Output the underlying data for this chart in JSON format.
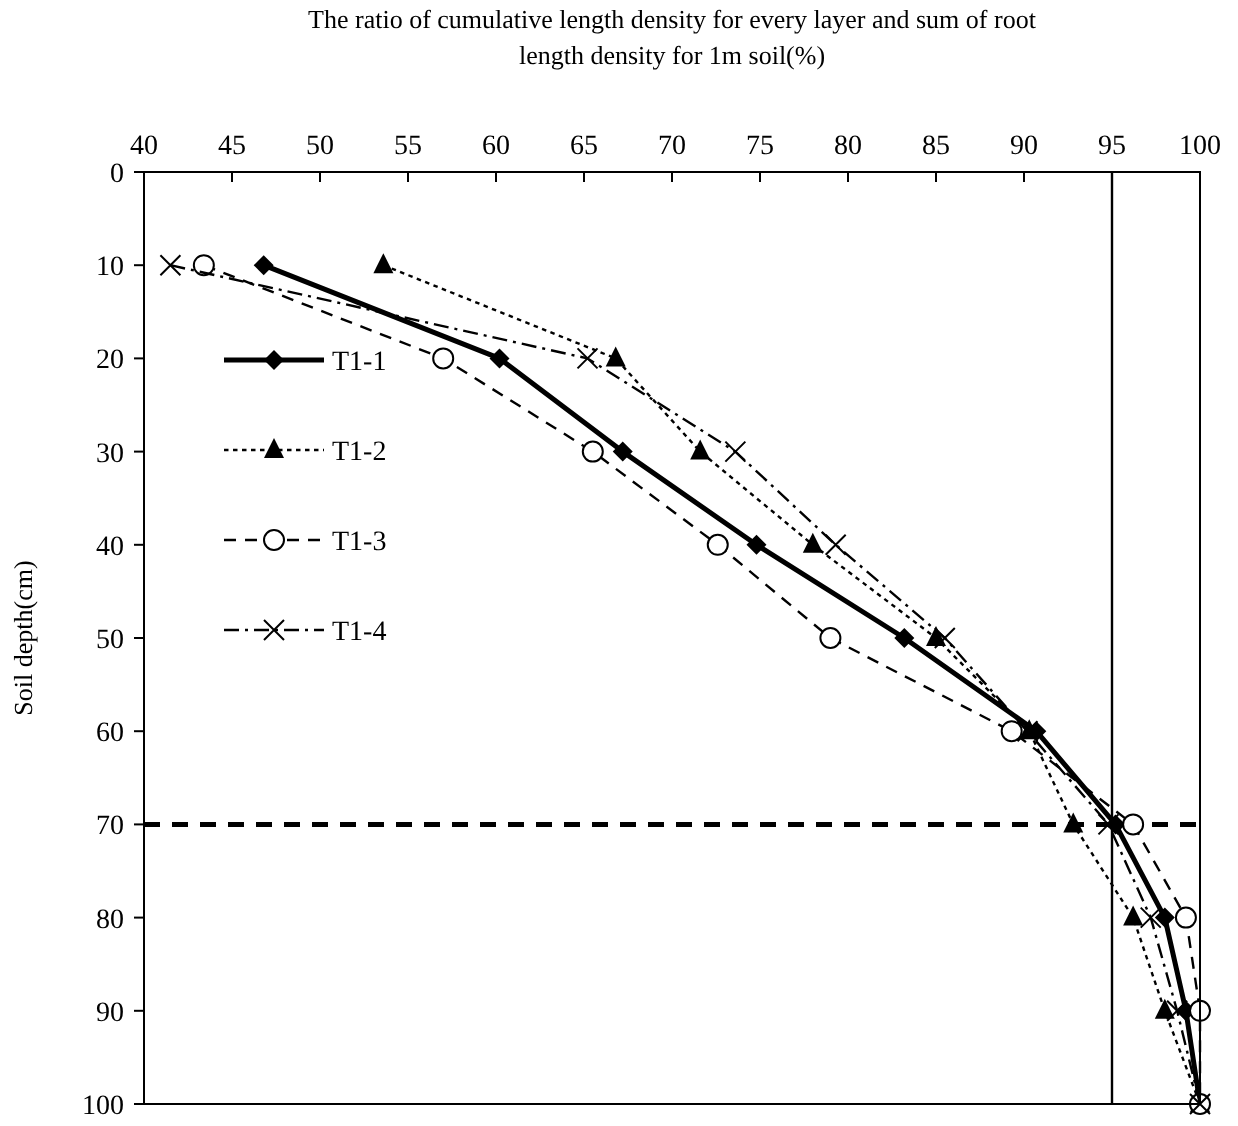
{
  "chart_data": {
    "type": "line",
    "xlabel": "The ratio of cumulative length density for every layer and sum of root length density for 1m soil(%)",
    "ylabel": "Soil depth(cm)",
    "xlim": [
      40,
      100
    ],
    "xticks": [
      40,
      45,
      50,
      55,
      60,
      65,
      70,
      75,
      80,
      85,
      90,
      95,
      100
    ],
    "ylim": [
      100,
      0
    ],
    "yticks": [
      0,
      10,
      20,
      30,
      40,
      50,
      60,
      70,
      80,
      90,
      100
    ],
    "legend": "left",
    "grid": false,
    "series": [
      {
        "name": "T1-1",
        "color": "#000000",
        "marker": "diamond",
        "line_style": "solid",
        "x": [
          46.8,
          60.2,
          67.2,
          74.8,
          83.2,
          90.7,
          95.2,
          98,
          99.2,
          100
        ],
        "values": [
          10,
          20,
          30,
          40,
          50,
          60,
          70,
          80,
          90,
          100
        ]
      },
      {
        "name": "T1-2",
        "color": "#000000",
        "marker": "triangle",
        "line_style": "dotted",
        "x": [
          53.6,
          66.8,
          71.6,
          78,
          85,
          90.3,
          92.8,
          96.2,
          98,
          100
        ],
        "values": [
          10,
          20,
          30,
          40,
          50,
          60,
          70,
          80,
          90,
          100
        ]
      },
      {
        "name": "T1-3",
        "color": "#000000",
        "marker": "circle",
        "line_style": "dashed",
        "x": [
          43.4,
          57,
          65.5,
          72.6,
          79,
          89.3,
          96.2,
          99.2,
          100,
          100
        ],
        "values": [
          10,
          20,
          30,
          40,
          50,
          60,
          70,
          80,
          90,
          100
        ]
      },
      {
        "name": "T1-4",
        "color": "#000000",
        "marker": "cross",
        "line_style": "dashdot",
        "x": [
          41.5,
          65.2,
          73.6,
          79.3,
          85.5,
          90.2,
          94.8,
          97.2,
          98.7,
          100
        ],
        "values": [
          10,
          20,
          30,
          40,
          50,
          60,
          70,
          80,
          90,
          100
        ]
      }
    ],
    "ref_lines": [
      {
        "axis": "y",
        "value": 70,
        "line_style": "dashed",
        "color": "#000000"
      },
      {
        "axis": "x",
        "value": 95,
        "line_style": "solid",
        "color": "#000000"
      }
    ]
  }
}
